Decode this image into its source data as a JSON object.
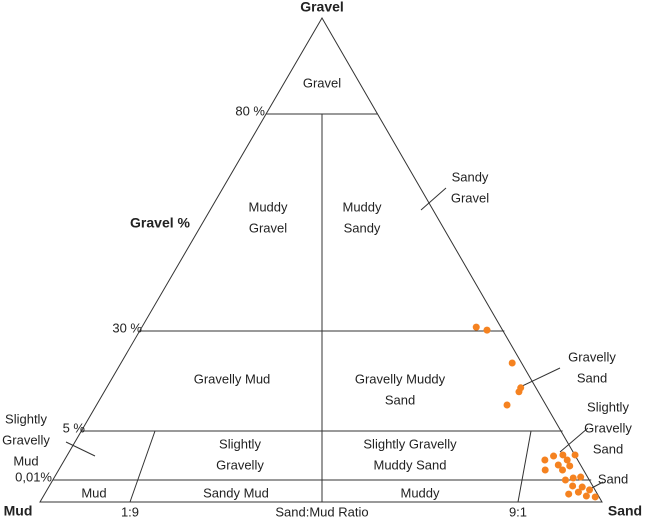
{
  "corners": {
    "gravel": "Gravel",
    "mud": "Mud",
    "sand": "Sand"
  },
  "axis": {
    "gravel_label": "Gravel %",
    "ratio_label": "Sand:Mud Ratio"
  },
  "gravel_ticks": [
    {
      "value": 80,
      "label": "80 %"
    },
    {
      "value": 30,
      "label": "30 %"
    },
    {
      "value": 5,
      "label": "5 %"
    },
    {
      "value": 0.01,
      "label": "0,01%"
    }
  ],
  "ratio_ticks": [
    {
      "value": 0.1,
      "label": "1:9"
    },
    {
      "value": 0.9,
      "label": "9:1"
    }
  ],
  "regions": [
    {
      "lines": [
        "Gravel"
      ]
    },
    {
      "lines": [
        "Muddy",
        "Gravel"
      ]
    },
    {
      "lines": [
        "Muddy",
        "Sandy"
      ]
    },
    {
      "lines": [
        "Sandy",
        "Gravel"
      ]
    },
    {
      "lines": [
        "Gravelly Mud"
      ]
    },
    {
      "lines": [
        "Gravelly Muddy",
        "Sand"
      ]
    },
    {
      "lines": [
        "Gravelly",
        "Sand"
      ]
    },
    {
      "lines": [
        "Slightly",
        "Gravelly",
        "Mud"
      ]
    },
    {
      "lines": [
        "Slightly",
        "Gravelly"
      ]
    },
    {
      "lines": [
        "Slightly Gravelly",
        "Muddy Sand"
      ]
    },
    {
      "lines": [
        "Slightly",
        "Gravelly",
        "Sand"
      ]
    },
    {
      "lines": [
        "Sand"
      ]
    },
    {
      "lines": [
        "Mud"
      ]
    },
    {
      "lines": [
        "Sandy Mud"
      ]
    },
    {
      "lines": [
        "Muddy"
      ]
    }
  ],
  "samples": [
    {
      "gravel_pct": 30.9,
      "sand_fraction": 0.952
    },
    {
      "gravel_pct": 30.2,
      "sand_fraction": 0.969
    },
    {
      "gravel_pct": 22,
      "sand_fraction": 0.982
    },
    {
      "gravel_pct": 15.8,
      "sand_fraction": 0.974
    },
    {
      "gravel_pct": 14.8,
      "sand_fraction": 0.968
    },
    {
      "gravel_pct": 11.5,
      "sand_fraction": 0.94
    },
    {
      "gravel_pct": 2.56,
      "sand_fraction": 0.982
    },
    {
      "gravel_pct": 2.05,
      "sand_fraction": 0.984
    },
    {
      "gravel_pct": 2.45,
      "sand_fraction": 0.969
    },
    {
      "gravel_pct": 2.05,
      "sand_fraction": 0.955
    },
    {
      "gravel_pct": 1.44,
      "sand_fraction": 0.983
    },
    {
      "gravel_pct": 1.03,
      "sand_fraction": 0.971
    },
    {
      "gravel_pct": 1.03,
      "sand_fraction": 0.949
    },
    {
      "gravel_pct": 1.54,
      "sand_fraction": 0.969
    },
    {
      "gravel_pct": 2.56,
      "sand_fraction": 0.998
    },
    {
      "gravel_pct": 0.21,
      "sand_fraction": 0.979
    },
    {
      "gravel_pct": 0.01,
      "sand_fraction": 0.968
    },
    {
      "gravel_pct": 0.31,
      "sand_fraction": 0.989
    },
    {
      "gravel_pct": 0.0073,
      "sand_fraction": 0.973
    },
    {
      "gravel_pct": 0.0068,
      "sand_fraction": 0.984
    },
    {
      "gravel_pct": 0.0055,
      "sand_fraction": 0.991
    },
    {
      "gravel_pct": 0.0036,
      "sand_fraction": 0.963
    },
    {
      "gravel_pct": 0.0045,
      "sand_fraction": 0.976
    },
    {
      "gravel_pct": 0.0027,
      "sand_fraction": 0.983
    },
    {
      "gravel_pct": 0.0023,
      "sand_fraction": 0.993
    }
  ]
}
